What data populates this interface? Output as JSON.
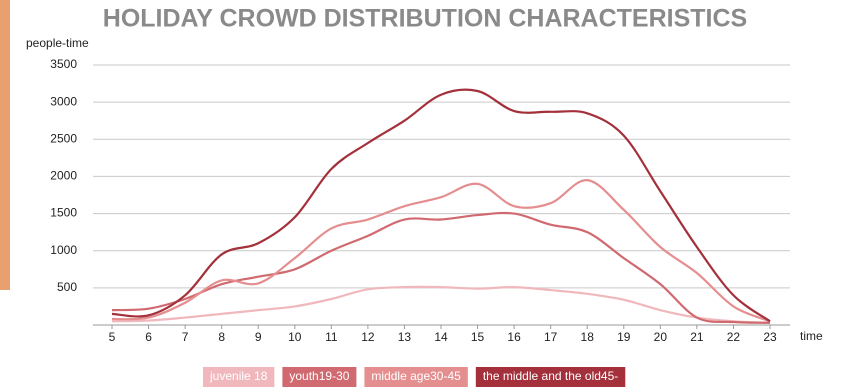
{
  "chart_data": {
    "type": "line",
    "title": "HOLIDAY CROWD DISTRIBUTION CHARACTERISTICS",
    "y_label": "people-time",
    "x_label": "time",
    "x": [
      5,
      6,
      7,
      8,
      9,
      10,
      11,
      12,
      13,
      14,
      15,
      16,
      17,
      18,
      19,
      20,
      21,
      22,
      23
    ],
    "xlim": [
      5,
      23
    ],
    "xticks": [
      5,
      6,
      7,
      8,
      9,
      10,
      11,
      12,
      13,
      14,
      15,
      16,
      17,
      18,
      19,
      20,
      21,
      22,
      23
    ],
    "ylim": [
      0,
      3500
    ],
    "yticks": [
      500,
      1000,
      1500,
      2000,
      2500,
      3000,
      3500
    ],
    "grid": true,
    "legend": "bottom",
    "series": [
      {
        "name": "juvenile 18",
        "color": "#f0b8bc",
        "values": [
          50,
          60,
          100,
          150,
          200,
          250,
          350,
          480,
          510,
          510,
          490,
          510,
          470,
          420,
          340,
          200,
          100,
          50,
          30
        ]
      },
      {
        "name": "youth19-30",
        "color": "#d06a70",
        "values": [
          200,
          220,
          350,
          550,
          650,
          750,
          1000,
          1200,
          1420,
          1420,
          1480,
          1500,
          1350,
          1250,
          900,
          550,
          100,
          40,
          30
        ]
      },
      {
        "name": "middle age30-45",
        "color": "#e58e8f",
        "values": [
          80,
          100,
          300,
          600,
          560,
          900,
          1300,
          1420,
          1600,
          1720,
          1900,
          1600,
          1640,
          1950,
          1550,
          1050,
          700,
          250,
          50
        ]
      },
      {
        "name": "the middle and the old45-",
        "color": "#a3303a",
        "values": [
          150,
          130,
          400,
          950,
          1100,
          1450,
          2100,
          2450,
          2750,
          3100,
          3150,
          2880,
          2870,
          2850,
          2550,
          1800,
          1050,
          400,
          50
        ]
      }
    ]
  }
}
